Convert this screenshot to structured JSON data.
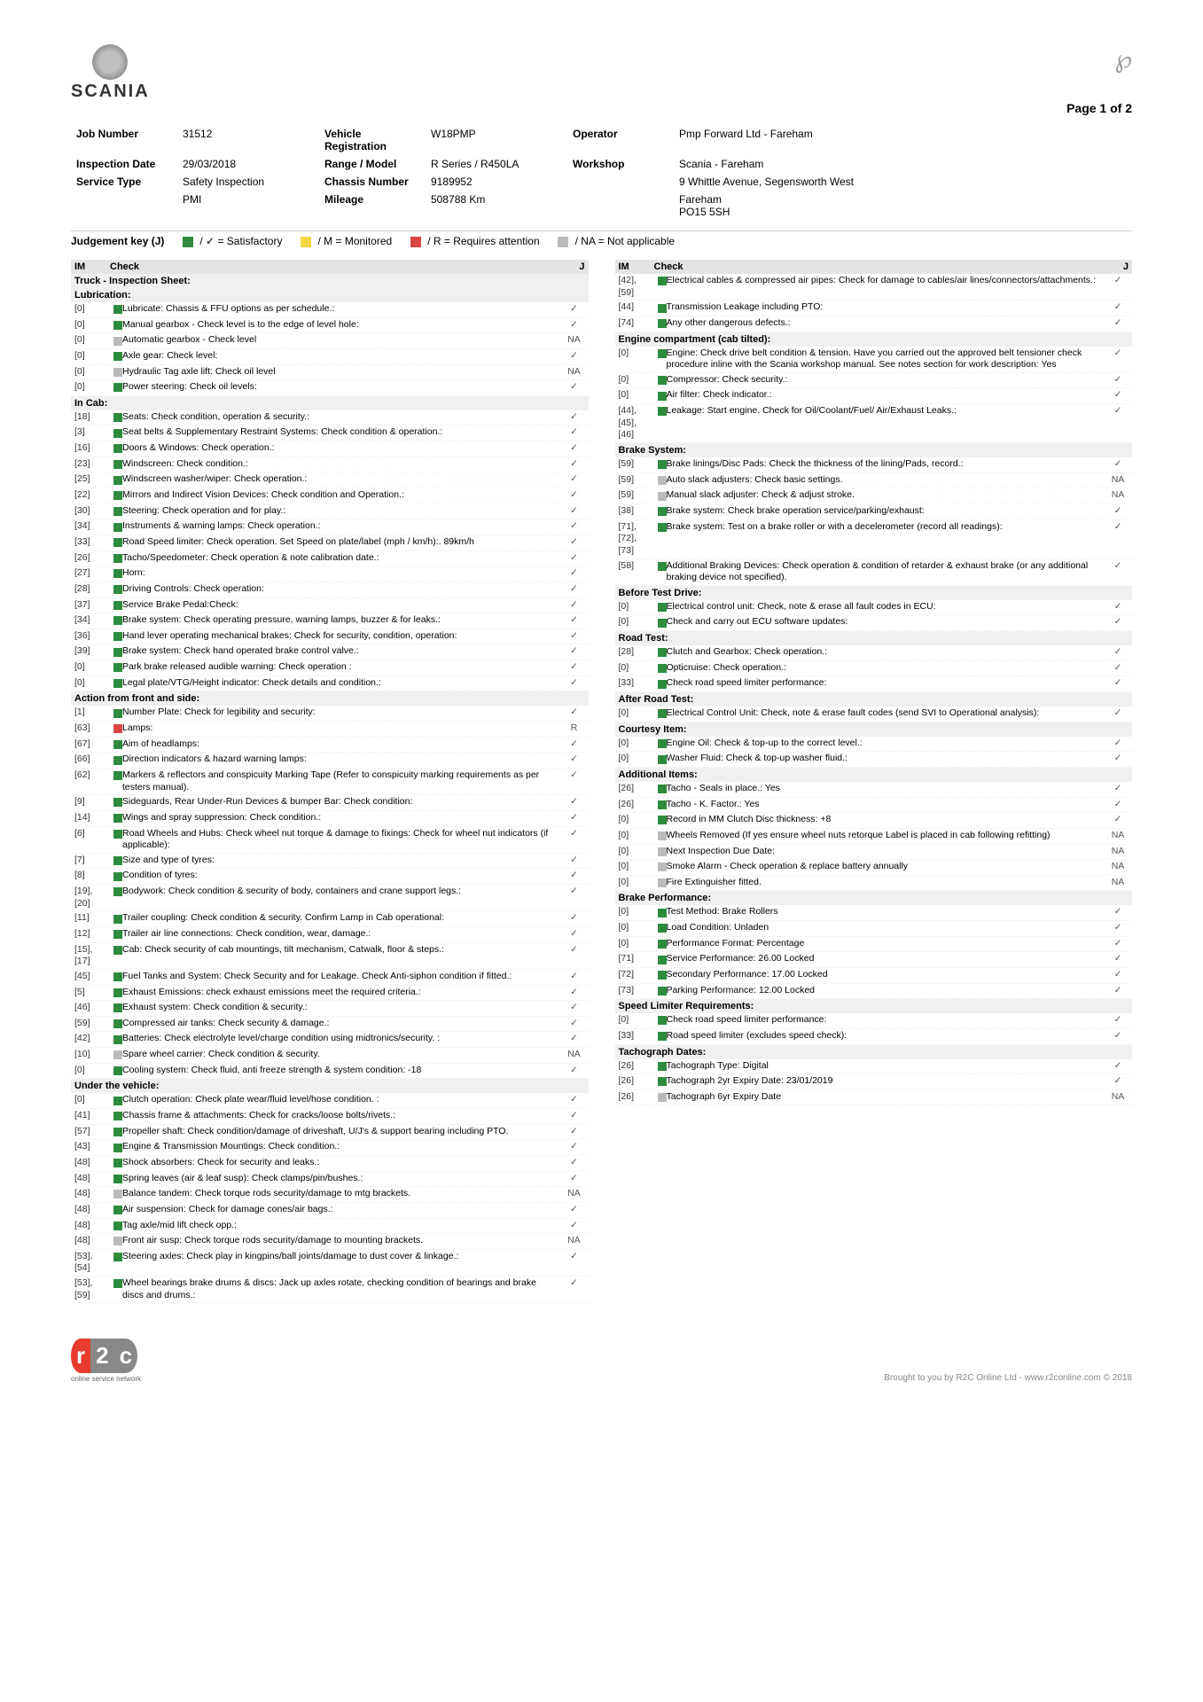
{
  "page": "Page 1 of 2",
  "brand": "SCANIA",
  "meta": {
    "job_number_label": "Job Number",
    "job_number": "31512",
    "inspection_date_label": "Inspection Date",
    "inspection_date": "29/03/2018",
    "service_type_label": "Service Type",
    "service_type": "Safety Inspection",
    "service_type2": "PMI",
    "vehicle_reg_label": "Vehicle Registration",
    "vehicle_reg": "W18PMP",
    "range_label": "Range / Model",
    "range": "R Series / R450LA",
    "chassis_label": "Chassis Number",
    "chassis": "9189952",
    "mileage_label": "Mileage",
    "mileage": "508788 Km",
    "operator_label": "Operator",
    "operator": "Pmp Forward Ltd - Fareham",
    "workshop_label": "Workshop",
    "workshop": "Scania - Fareham",
    "workshop_addr1": "9 Whittle Avenue, Segensworth West",
    "workshop_addr2": "Fareham",
    "workshop_addr3": "PO15 5SH"
  },
  "judgement": {
    "label": "Judgement key (J)",
    "sat": "/ ✓ = Satisfactory",
    "mon": "/ M = Monitored",
    "req": "/ R = Requires attention",
    "na": "/ NA = Not applicable"
  },
  "hdr": {
    "im": "IM",
    "check": "Check",
    "j": "J"
  },
  "colors": {
    "green": "#2e8b3d",
    "yellow": "#f5d742",
    "red": "#d94545",
    "grey": "#bbb"
  },
  "left": [
    {
      "type": "title",
      "text": "Truck - Inspection Sheet:"
    },
    {
      "type": "sub",
      "text": "Lubrication:"
    },
    {
      "im": "[0]",
      "c": "green",
      "d": "Lubricate: Chassis & FFU options as per schedule.:",
      "j": "✓"
    },
    {
      "im": "[0]",
      "c": "green",
      "d": "Manual gearbox - Check level is to the edge of level hole:",
      "j": "✓"
    },
    {
      "im": "[0]",
      "c": "grey",
      "d": "Automatic gearbox - Check level",
      "j": "NA"
    },
    {
      "im": "[0]",
      "c": "green",
      "d": "Axle gear: Check level:",
      "j": "✓"
    },
    {
      "im": "[0]",
      "c": "grey",
      "d": "Hydraulic Tag axle lift: Check oil level",
      "j": "NA"
    },
    {
      "im": "[0]",
      "c": "green",
      "d": "Power steering: Check oil levels:",
      "j": "✓"
    },
    {
      "type": "sub",
      "text": "In Cab:"
    },
    {
      "im": "[18]",
      "c": "green",
      "d": "Seats: Check condition, operation & security.:",
      "j": "✓"
    },
    {
      "im": "[3]",
      "c": "green",
      "d": "Seat belts & Supplementary Restraint Systems: Check condition & operation.:",
      "j": "✓"
    },
    {
      "im": "[16]",
      "c": "green",
      "d": "Doors & Windows: Check operation.:",
      "j": "✓"
    },
    {
      "im": "[23]",
      "c": "green",
      "d": "Windscreen: Check condition.:",
      "j": "✓"
    },
    {
      "im": "[25]",
      "c": "green",
      "d": "Windscreen washer/wiper: Check operation.:",
      "j": "✓"
    },
    {
      "im": "[22]",
      "c": "green",
      "d": "Mirrors and Indirect Vision Devices: Check condition and Operation.:",
      "j": "✓"
    },
    {
      "im": "[30]",
      "c": "green",
      "d": "Steering: Check operation and for play.:",
      "j": "✓"
    },
    {
      "im": "[34]",
      "c": "green",
      "d": "Instruments & warning lamps: Check operation.:",
      "j": "✓"
    },
    {
      "im": "[33]",
      "c": "green",
      "d": "Road Speed limiter: Check operation. Set Speed on plate/label (mph / km/h):. 89km/h",
      "j": "✓"
    },
    {
      "im": "[26]",
      "c": "green",
      "d": "Tacho/Speedometer: Check operation & note calibration date.:",
      "j": "✓"
    },
    {
      "im": "[27]",
      "c": "green",
      "d": "Horn:",
      "j": "✓"
    },
    {
      "im": "[28]",
      "c": "green",
      "d": "Driving Controls: Check operation:",
      "j": "✓"
    },
    {
      "im": "[37]",
      "c": "green",
      "d": "Service Brake Pedal:Check:",
      "j": "✓"
    },
    {
      "im": "[34]",
      "c": "green",
      "d": "Brake system: Check operating pressure, warning lamps, buzzer & for leaks.:",
      "j": "✓"
    },
    {
      "im": "[36]",
      "c": "green",
      "d": "Hand lever operating mechanical brakes: Check for security, condition, operation:",
      "j": "✓"
    },
    {
      "im": "[39]",
      "c": "green",
      "d": "Brake system: Check hand operated brake control valve.:",
      "j": "✓"
    },
    {
      "im": "[0]",
      "c": "green",
      "d": "Park brake released audible warning: Check operation :",
      "j": "✓"
    },
    {
      "im": "[0]",
      "c": "green",
      "d": "Legal plate/VTG/Height indicator: Check details and condition.:",
      "j": "✓"
    },
    {
      "type": "sub",
      "text": "Action from front and side:"
    },
    {
      "im": "[1]",
      "c": "green",
      "d": "Number Plate: Check for legibility and security:",
      "j": "✓"
    },
    {
      "im": "[63]",
      "c": "red",
      "d": "Lamps:",
      "j": "R"
    },
    {
      "im": "[67]",
      "c": "green",
      "d": "Aim of headlamps:",
      "j": "✓"
    },
    {
      "im": "[66]",
      "c": "green",
      "d": "Direction indicators & hazard warning lamps:",
      "j": "✓"
    },
    {
      "im": "[62]",
      "c": "green",
      "d": "Markers & reflectors and conspicuity Marking Tape (Refer to conspicuity marking requirements as per testers manual).",
      "j": "✓"
    },
    {
      "im": "[9]",
      "c": "green",
      "d": "Sideguards, Rear Under-Run Devices & bumper Bar: Check condition:",
      "j": "✓"
    },
    {
      "im": "[14]",
      "c": "green",
      "d": "Wings and spray suppression: Check condition.:",
      "j": "✓"
    },
    {
      "im": "[6]",
      "c": "green",
      "d": "Road Wheels and Hubs: Check wheel nut torque & damage to fixings: Check for wheel nut indicators (if applicable):",
      "j": "✓"
    },
    {
      "im": "[7]",
      "c": "green",
      "d": "Size and type of tyres:",
      "j": "✓"
    },
    {
      "im": "[8]",
      "c": "green",
      "d": "Condition of tyres:",
      "j": "✓"
    },
    {
      "im": "[19], [20]",
      "c": "green",
      "d": "Bodywork: Check condition & security of body, containers and crane support legs.:",
      "j": "✓"
    },
    {
      "im": "[11]",
      "c": "green",
      "d": "Trailer coupling: Check condition & security. Confirm Lamp in Cab operational:",
      "j": "✓"
    },
    {
      "im": "[12]",
      "c": "green",
      "d": "Trailer air line connections: Check condition, wear, damage.:",
      "j": "✓"
    },
    {
      "im": "[15], [17]",
      "c": "green",
      "d": "Cab: Check security of cab mountings, tilt mechanism, Catwalk, floor & steps.:",
      "j": "✓"
    },
    {
      "im": "[45]",
      "c": "green",
      "d": "Fuel Tanks and System: Check Security and for Leakage. Check Anti-siphon condition if fitted.:",
      "j": "✓"
    },
    {
      "im": "[5]",
      "c": "green",
      "d": "Exhaust Emissions: check exhaust emissions meet the required criteria.:",
      "j": "✓"
    },
    {
      "im": "[46]",
      "c": "green",
      "d": "Exhaust system: Check condition & security.:",
      "j": "✓"
    },
    {
      "im": "[59]",
      "c": "green",
      "d": "Compressed air tanks: Check security & damage.:",
      "j": "✓"
    },
    {
      "im": "[42]",
      "c": "green",
      "d": "Batteries: Check electrolyte level/charge condition using midtronics/security. :",
      "j": "✓"
    },
    {
      "im": "[10]",
      "c": "grey",
      "d": "Spare wheel carrier: Check condition & security.",
      "j": "NA"
    },
    {
      "im": "[0]",
      "c": "green",
      "d": "Cooling system: Check fluid, anti freeze strength & system condition: -18",
      "j": "✓"
    },
    {
      "type": "sub",
      "text": "Under the vehicle:"
    },
    {
      "im": "[0]",
      "c": "green",
      "d": "Clutch operation: Check plate wear/fluid level/hose condition. :",
      "j": "✓"
    },
    {
      "im": "[41]",
      "c": "green",
      "d": "Chassis frame & attachments: Check for cracks/loose bolts/rivets.:",
      "j": "✓"
    },
    {
      "im": "[57]",
      "c": "green",
      "d": "Propeller shaft: Check condition/damage of driveshaft, U/J's & support bearing including PTO.",
      "j": "✓"
    },
    {
      "im": "[43]",
      "c": "green",
      "d": "Engine & Transmission Mountings: Check condition.:",
      "j": "✓"
    },
    {
      "im": "[48]",
      "c": "green",
      "d": "Shock absorbers: Check for security and leaks.:",
      "j": "✓"
    },
    {
      "im": "[48]",
      "c": "green",
      "d": "Spring leaves (air & leaf susp): Check clamps/pin/bushes.:",
      "j": "✓"
    },
    {
      "im": "[48]",
      "c": "grey",
      "d": "Balance tandem: Check torque rods security/damage to mtg brackets.",
      "j": "NA"
    },
    {
      "im": "[48]",
      "c": "green",
      "d": "Air suspension: Check for damage cones/air bags.:",
      "j": "✓"
    },
    {
      "im": "[48]",
      "c": "green",
      "d": "Tag axle/mid lift check opp.:",
      "j": "✓"
    },
    {
      "im": "[48]",
      "c": "grey",
      "d": "Front air susp: Check torque rods security/damage to mounting brackets.",
      "j": "NA"
    },
    {
      "im": "[53], [54]",
      "c": "green",
      "d": "Steering axles: Check play in kingpins/ball joints/damage to dust cover & linkage.:",
      "j": "✓"
    },
    {
      "im": "[53], [59]",
      "c": "green",
      "d": "Wheel bearings brake drums & discs: Jack up axles rotate, checking condition of bearings and brake discs and drums.:",
      "j": "✓"
    }
  ],
  "right": [
    {
      "im": "[42], [59]",
      "c": "green",
      "d": "Electrical cables & compressed air pipes: Check for damage to cables/air lines/connectors/attachments.:",
      "j": "✓"
    },
    {
      "im": "[44]",
      "c": "green",
      "d": "Transmission Leakage including PTO:",
      "j": "✓"
    },
    {
      "im": "[74]",
      "c": "green",
      "d": "Any other dangerous defects.:",
      "j": "✓"
    },
    {
      "type": "sub",
      "text": "Engine compartment (cab tilted):"
    },
    {
      "im": "[0]",
      "c": "green",
      "d": "Engine: Check drive belt condition & tension. Have you carried out the approved belt tensioner check procedure inline with the Scania workshop manual. See notes section for work description: Yes",
      "j": "✓"
    },
    {
      "im": "[0]",
      "c": "green",
      "d": "Compressor: Check security.:",
      "j": "✓"
    },
    {
      "im": "[0]",
      "c": "green",
      "d": "Air filter: Check indicator.:",
      "j": "✓"
    },
    {
      "im": "[44], [45], [46]",
      "c": "green",
      "d": "Leakage: Start engine. Check for Oil/Coolant/Fuel/ Air/Exhaust Leaks.:",
      "j": "✓"
    },
    {
      "type": "sub",
      "text": "Brake System:"
    },
    {
      "im": "[59]",
      "c": "green",
      "d": "Brake linings/Disc Pads: Check the thickness of the lining/Pads, record.:",
      "j": "✓"
    },
    {
      "im": "[59]",
      "c": "grey",
      "d": "Auto slack adjusters: Check basic settings.",
      "j": "NA"
    },
    {
      "im": "[59]",
      "c": "grey",
      "d": "Manual slack adjuster: Check & adjust stroke.",
      "j": "NA"
    },
    {
      "im": "[38]",
      "c": "green",
      "d": "Brake system: Check brake operation service/parking/exhaust:",
      "j": "✓"
    },
    {
      "im": "[71], [72], [73]",
      "c": "green",
      "d": "Brake system: Test on a brake roller or with a decelerometer (record all readings):",
      "j": "✓"
    },
    {
      "im": "[58]",
      "c": "green",
      "d": "Additional Braking Devices: Check operation & condition of retarder & exhaust brake (or any additional braking device not specified).",
      "j": "✓"
    },
    {
      "type": "sub",
      "text": "Before Test Drive:"
    },
    {
      "im": "[0]",
      "c": "green",
      "d": "Electrical control unit: Check, note & erase all fault codes in ECU:",
      "j": "✓"
    },
    {
      "im": "[0]",
      "c": "green",
      "d": "Check and carry out ECU software updates:",
      "j": "✓"
    },
    {
      "type": "sub",
      "text": "Road Test:"
    },
    {
      "im": "[28]",
      "c": "green",
      "d": "Clutch and Gearbox: Check operation.:",
      "j": "✓"
    },
    {
      "im": "[0]",
      "c": "green",
      "d": "Opticruise: Check operation.:",
      "j": "✓"
    },
    {
      "im": "[33]",
      "c": "green",
      "d": "Check road speed limiter performance:",
      "j": "✓"
    },
    {
      "type": "sub",
      "text": "After Road Test:"
    },
    {
      "im": "[0]",
      "c": "green",
      "d": "Electrical Control Unit: Check, note & erase fault codes (send SVI to Operational analysis):",
      "j": "✓"
    },
    {
      "type": "sub",
      "text": "Courtesy Item:"
    },
    {
      "im": "[0]",
      "c": "green",
      "d": "Engine Oil: Check & top-up to the correct level.:",
      "j": "✓"
    },
    {
      "im": "[0]",
      "c": "green",
      "d": "Washer Fluid: Check & top-up washer fluid.:",
      "j": "✓"
    },
    {
      "type": "sub",
      "text": "Additional Items:"
    },
    {
      "im": "[26]",
      "c": "green",
      "d": "Tacho - Seals in place.: Yes",
      "j": "✓"
    },
    {
      "im": "[26]",
      "c": "green",
      "d": "Tacho - K. Factor.: Yes",
      "j": "✓"
    },
    {
      "im": "[0]",
      "c": "green",
      "d": "Record in MM Clutch Disc thickness: +8",
      "j": "✓"
    },
    {
      "im": "[0]",
      "c": "grey",
      "d": "Wheels Removed (If yes ensure wheel nuts retorque Label is placed in cab following refitting)",
      "j": "NA"
    },
    {
      "im": "[0]",
      "c": "grey",
      "d": "Next Inspection Due Date:",
      "j": "NA"
    },
    {
      "im": "[0]",
      "c": "grey",
      "d": "Smoke Alarm - Check operation & replace battery annually",
      "j": "NA"
    },
    {
      "im": "[0]",
      "c": "grey",
      "d": "Fire Extinguisher fitted.",
      "j": "NA"
    },
    {
      "type": "sub",
      "text": "Brake Performance:"
    },
    {
      "im": "[0]",
      "c": "green",
      "d": "Test Method: Brake Rollers",
      "j": "✓"
    },
    {
      "im": "[0]",
      "c": "green",
      "d": "Load Condition: Unladen",
      "j": "✓"
    },
    {
      "im": "[0]",
      "c": "green",
      "d": "Performance Format: Percentage",
      "j": "✓"
    },
    {
      "im": "[71]",
      "c": "green",
      "d": "Service Performance: 26.00 Locked",
      "j": "✓"
    },
    {
      "im": "[72]",
      "c": "green",
      "d": "Secondary Performance: 17.00 Locked",
      "j": "✓"
    },
    {
      "im": "[73]",
      "c": "green",
      "d": "Parking Performance: 12.00 Locked",
      "j": "✓"
    },
    {
      "type": "sub",
      "text": "Speed Limiter Requirements:"
    },
    {
      "im": "[0]",
      "c": "green",
      "d": "Check road speed limiter performance:",
      "j": "✓"
    },
    {
      "im": "[33]",
      "c": "green",
      "d": "Road speed limiter (excludes speed check):",
      "j": "✓"
    },
    {
      "type": "sub",
      "text": "Tachograph Dates:"
    },
    {
      "im": "[26]",
      "c": "green",
      "d": "Tachograph Type: Digital",
      "j": "✓"
    },
    {
      "im": "[26]",
      "c": "green",
      "d": "Tachograph 2yr Expiry Date: 23/01/2019",
      "j": "✓"
    },
    {
      "im": "[26]",
      "c": "grey",
      "d": "Tachograph 6yr Expiry Date",
      "j": "NA"
    }
  ],
  "footer": {
    "r2c_sub": "online service network",
    "credit": "Brought to you by R2C Online Ltd - www.r2conline.com © 2018"
  }
}
